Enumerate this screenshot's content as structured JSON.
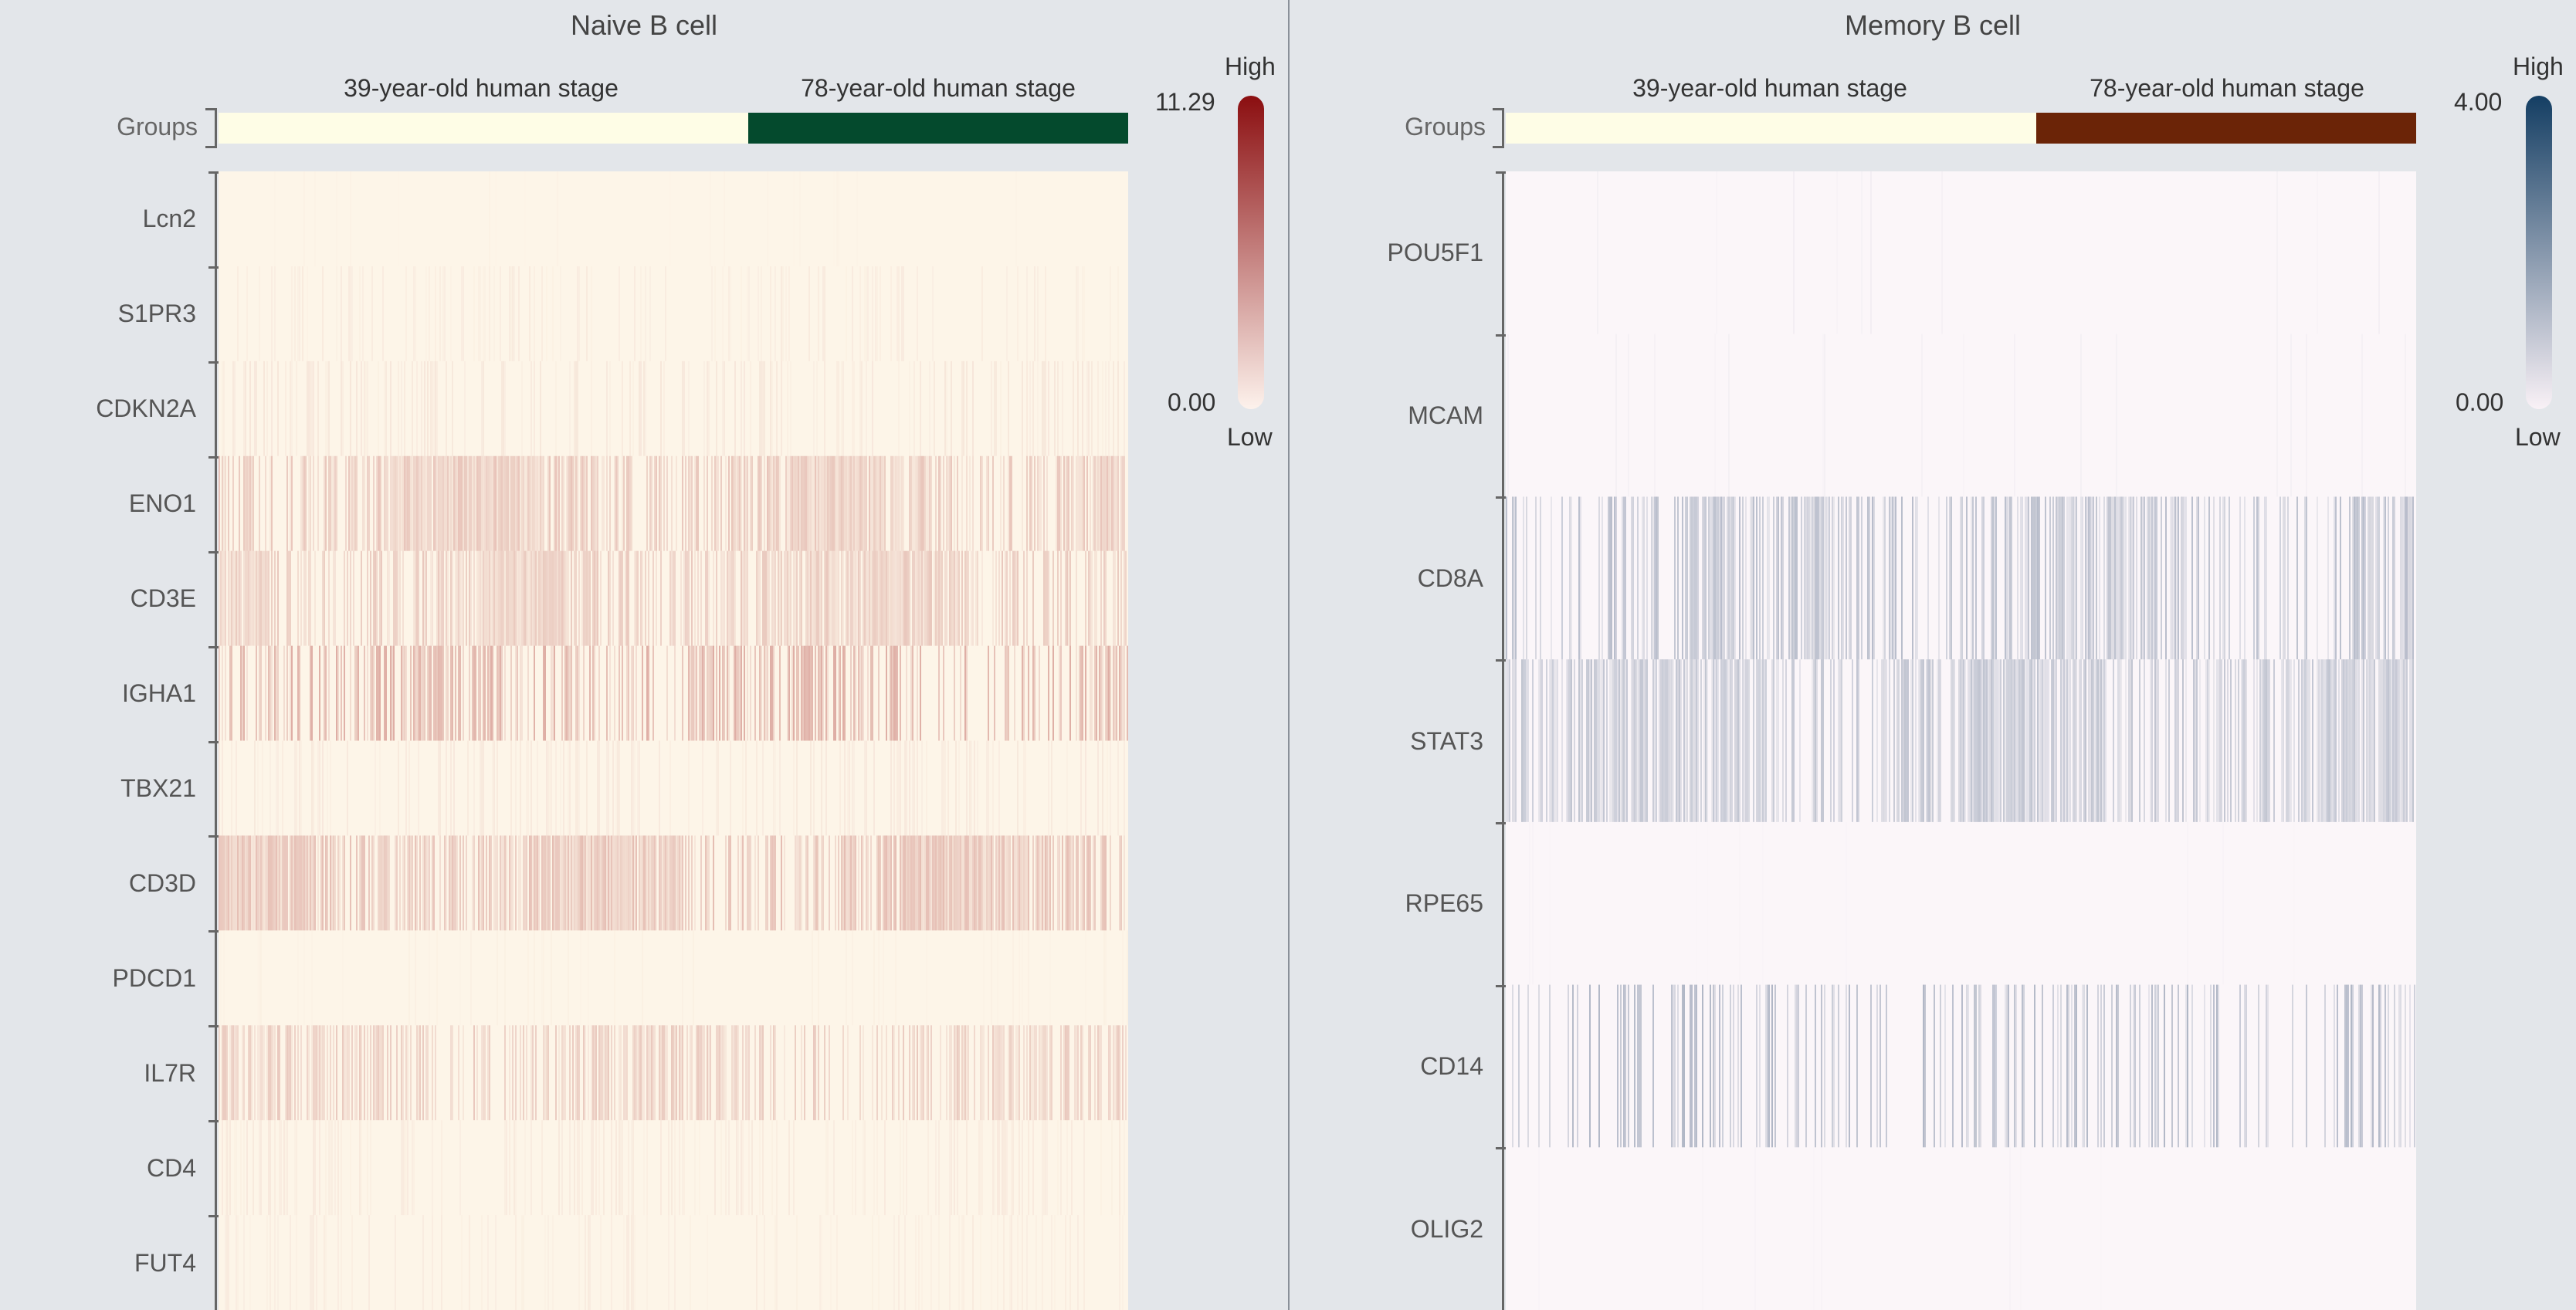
{
  "panels": [
    {
      "title": "Naive B cell",
      "groups_caption": "Groups",
      "groups": [
        {
          "label": "39-year-old human stage",
          "color": "#fefde6",
          "fraction": 0.583
        },
        {
          "label": "78-year-old human stage",
          "color": "#044a2d",
          "fraction": 0.417
        }
      ],
      "legend": {
        "high_label": "High",
        "low_label": "Low",
        "max": "11.29",
        "min": "0.00",
        "high_color": "#8b0e10",
        "low_color": "#fdf2ec"
      }
    },
    {
      "title": "Memory B cell",
      "groups_caption": "Groups",
      "groups": [
        {
          "label": "39-year-old human stage",
          "color": "#fefde6",
          "fraction": 0.583
        },
        {
          "label": "78-year-old human stage",
          "color": "#6b2407",
          "fraction": 0.417
        }
      ],
      "legend": {
        "high_label": "High",
        "low_label": "Low",
        "max": "4.00",
        "min": "0.00",
        "high_color": "#143e63",
        "low_color": "#f9f1f6"
      }
    }
  ],
  "chart_data": [
    {
      "type": "heatmap",
      "title": "Naive B cell",
      "rows": [
        "Lcn2",
        "S1PR3",
        "CDKN2A",
        "ENO1",
        "CD3E",
        "IGHA1",
        "TBX21",
        "CD3D",
        "PDCD1",
        "IL7R",
        "CD4",
        "FUT4"
      ],
      "columns": [
        "39-year-old human stage",
        "78-year-old human stage"
      ],
      "value_range": [
        0.0,
        11.29
      ],
      "base_color": "#fdf5e8",
      "mark_color": "#c4706a",
      "row_intensity": [
        0.02,
        0.06,
        0.09,
        0.3,
        0.28,
        0.45,
        0.08,
        0.35,
        0.03,
        0.28,
        0.07,
        0.06
      ],
      "row_density": [
        0.05,
        0.2,
        0.3,
        0.85,
        0.8,
        0.55,
        0.3,
        0.85,
        0.1,
        0.6,
        0.3,
        0.2
      ],
      "row_seed": [
        11,
        23,
        37,
        41,
        53,
        67,
        71,
        83,
        97,
        101,
        113,
        127
      ]
    },
    {
      "type": "heatmap",
      "title": "Memory B cell",
      "rows": [
        "POU5F1",
        "MCAM",
        "CD8A",
        "STAT3",
        "RPE65",
        "CD14",
        "OLIG2"
      ],
      "columns": [
        "39-year-old human stage",
        "78-year-old human stage"
      ],
      "value_range": [
        0.0,
        4.0
      ],
      "base_color": "#fbf6f9",
      "mark_color": "#6f7f99",
      "row_intensity": [
        0.05,
        0.04,
        0.4,
        0.35,
        0.02,
        0.45,
        0.02
      ],
      "row_density": [
        0.02,
        0.03,
        0.6,
        0.75,
        0.02,
        0.35,
        0.02
      ],
      "row_seed": [
        7,
        19,
        29,
        43,
        59,
        61,
        79
      ]
    }
  ]
}
